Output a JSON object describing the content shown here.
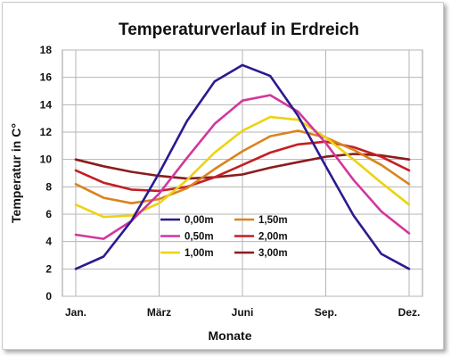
{
  "chart_data": {
    "type": "line",
    "title": "Temperaturverlauf in Erdreich",
    "xlabel": "Monate",
    "ylabel": "Temperatur in C°",
    "x_tick_labels": [
      "Jan.",
      "März",
      "Juni",
      "Sep.",
      "Dez."
    ],
    "x_tick_months": [
      1,
      4,
      7,
      10,
      13
    ],
    "x": [
      1,
      2,
      3,
      4,
      5,
      6,
      7,
      8,
      9,
      10,
      11,
      12,
      13
    ],
    "ylim": [
      0,
      18
    ],
    "yticks": [
      "0",
      "2",
      "4",
      "6",
      "8",
      "10",
      "12",
      "14",
      "16",
      "18"
    ],
    "grid": true,
    "legend_position": "center, two columns",
    "series": [
      {
        "name": "0,00m",
        "color": "#2a1b8f",
        "values": [
          2.0,
          2.9,
          5.5,
          9.0,
          12.8,
          15.7,
          16.9,
          16.1,
          13.2,
          9.5,
          5.9,
          3.1,
          2.0
        ]
      },
      {
        "name": "0,50m",
        "color": "#d2379d",
        "values": [
          4.5,
          4.2,
          5.5,
          7.5,
          10.1,
          12.6,
          14.3,
          14.7,
          13.5,
          11.2,
          8.5,
          6.2,
          4.6
        ]
      },
      {
        "name": "1,00m",
        "color": "#ecd312",
        "values": [
          6.7,
          5.8,
          5.9,
          6.8,
          8.5,
          10.5,
          12.1,
          13.1,
          12.9,
          11.6,
          10.0,
          8.3,
          6.7
        ]
      },
      {
        "name": "1,50m",
        "color": "#d9841e",
        "values": [
          8.2,
          7.2,
          6.8,
          7.1,
          7.9,
          9.3,
          10.6,
          11.7,
          12.1,
          11.6,
          10.7,
          9.6,
          8.2
        ]
      },
      {
        "name": "2,00m",
        "color": "#c41f24",
        "values": [
          9.2,
          8.3,
          7.8,
          7.7,
          8.0,
          8.7,
          9.6,
          10.5,
          11.1,
          11.3,
          10.9,
          10.2,
          9.2
        ]
      },
      {
        "name": "3,00m",
        "color": "#8b1c1c",
        "values": [
          10.0,
          9.5,
          9.1,
          8.8,
          8.6,
          8.7,
          8.9,
          9.4,
          9.8,
          10.2,
          10.4,
          10.3,
          10.0
        ]
      }
    ]
  }
}
